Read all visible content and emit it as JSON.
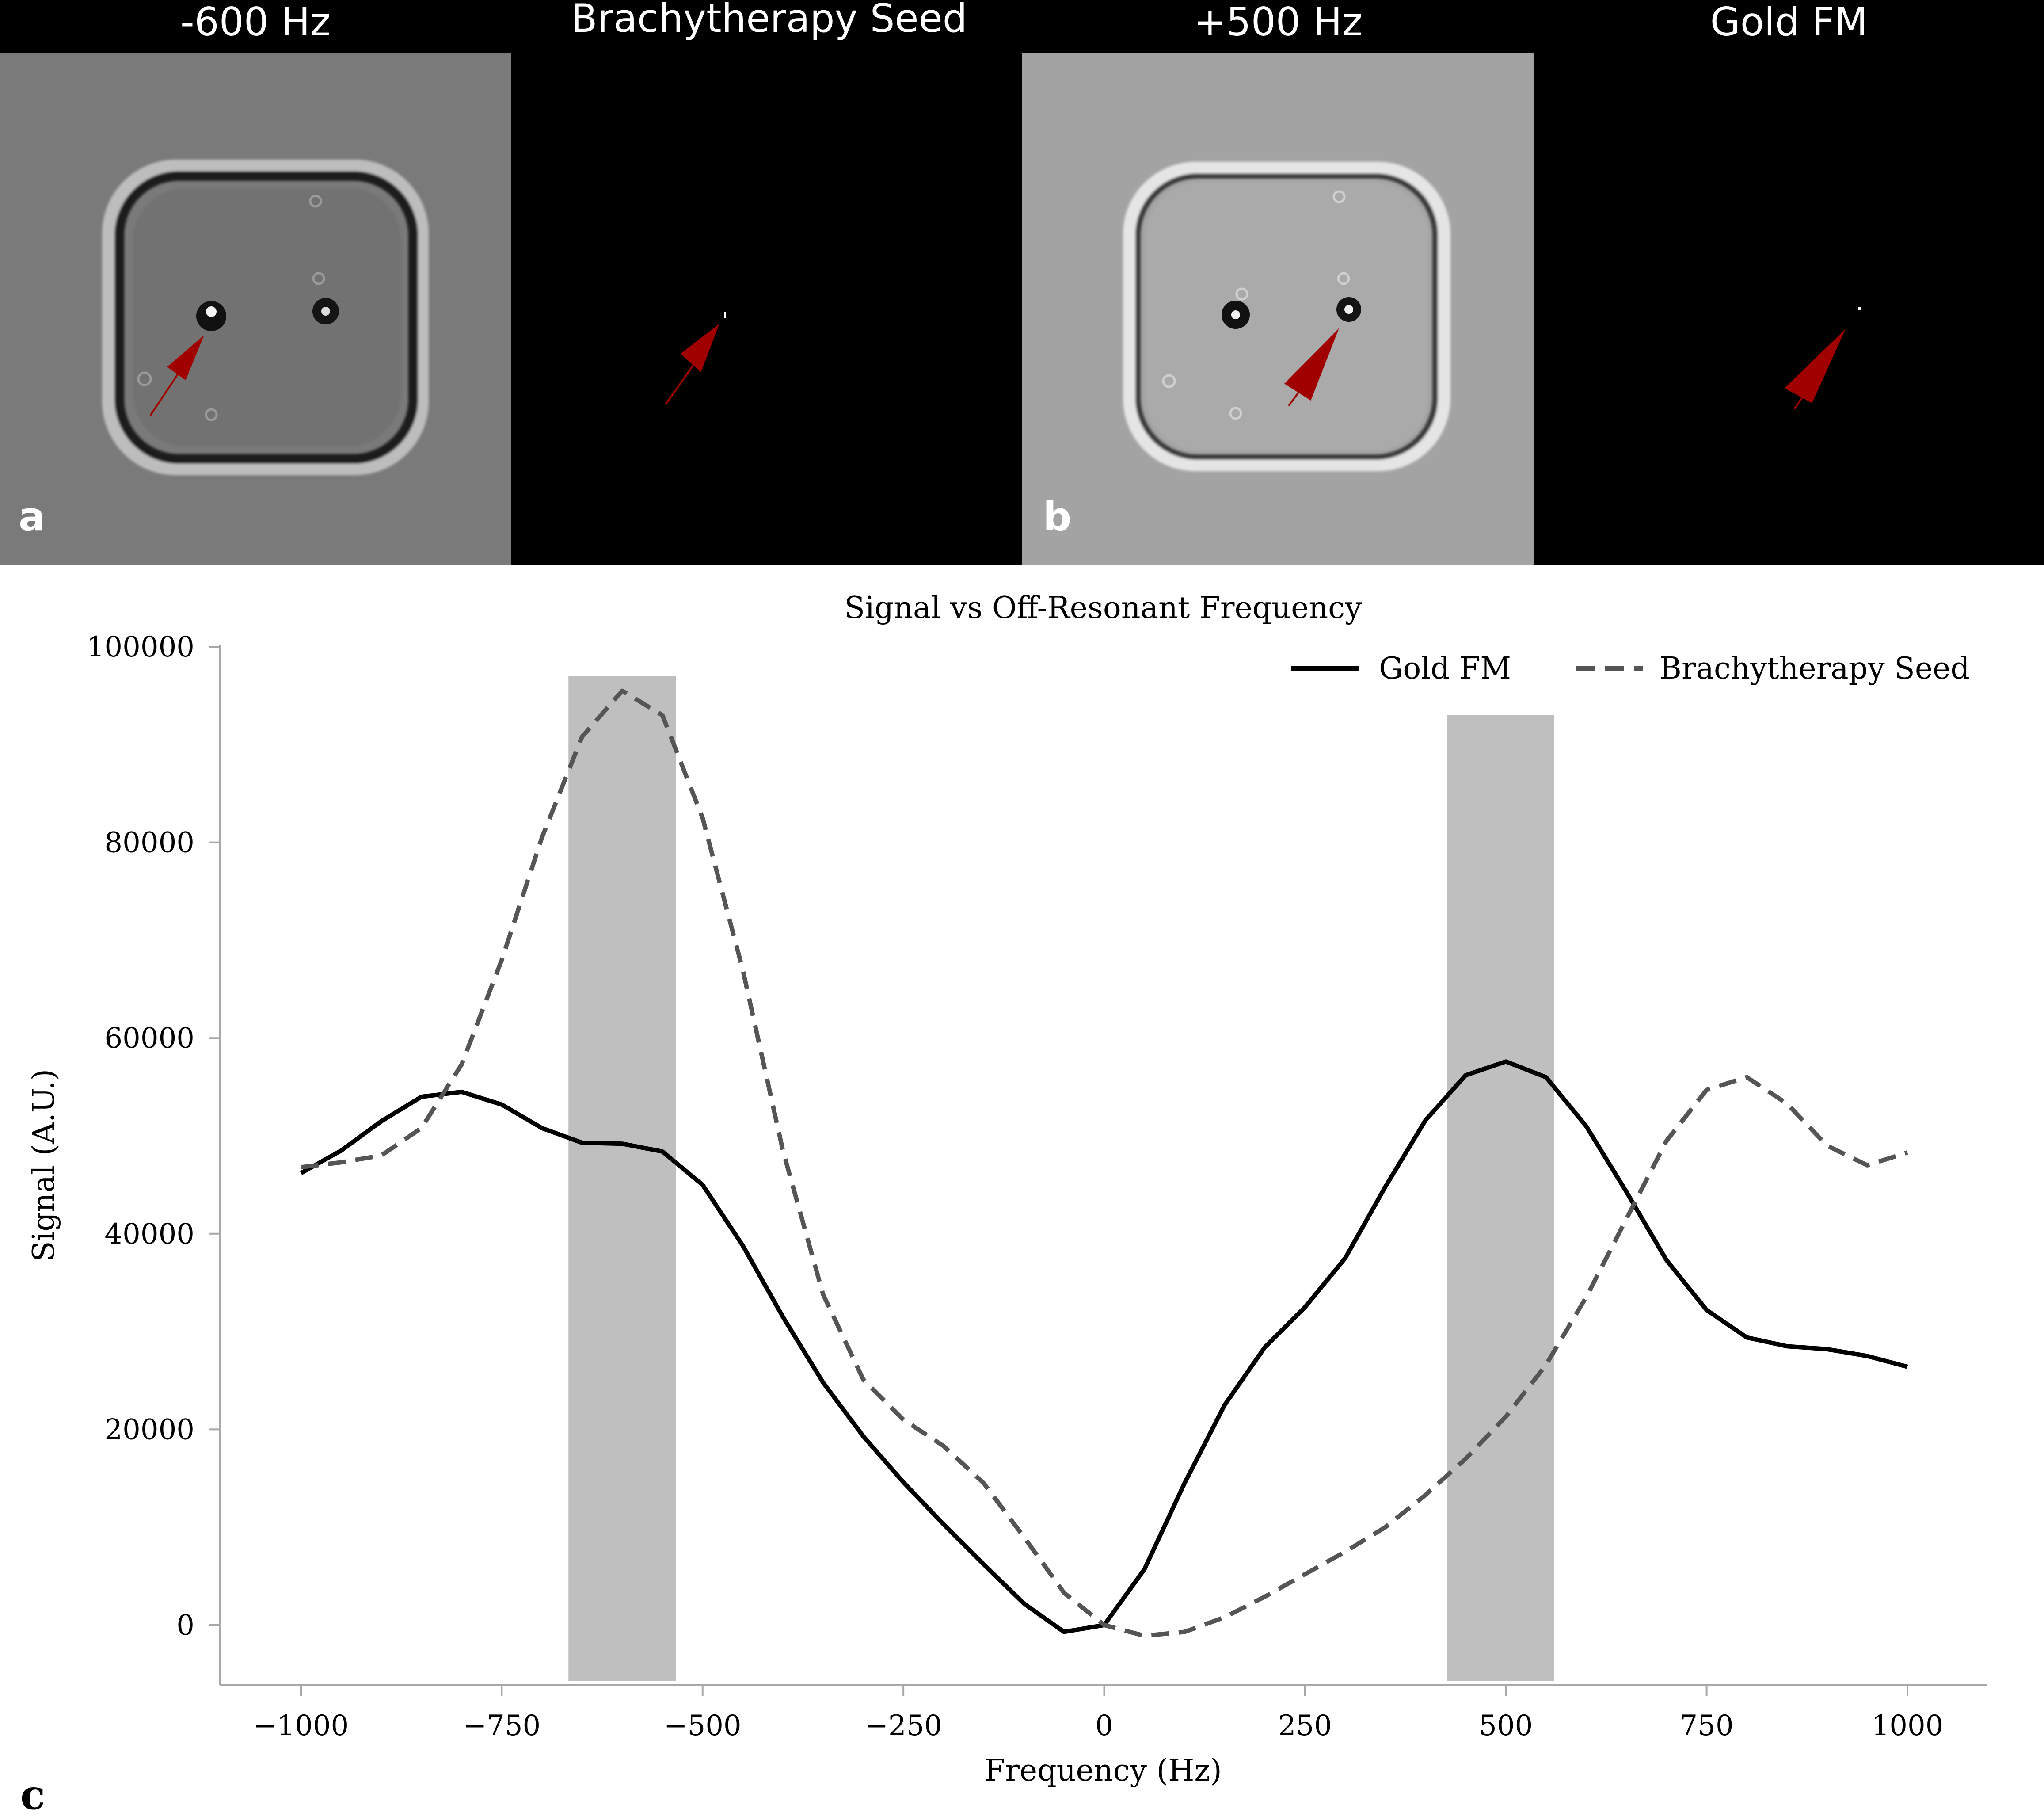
{
  "panels": [
    {
      "title": "-600 Hz",
      "letter": "a",
      "kind": "mri",
      "bg": "#7a7a7a"
    },
    {
      "title": "Brachytherapy Seed",
      "letter": "",
      "kind": "mask",
      "bg": "#000000"
    },
    {
      "title": "+500 Hz",
      "letter": "b",
      "kind": "mri",
      "bg": "#a3a3a3"
    },
    {
      "title": "Gold FM",
      "letter": "",
      "kind": "mask",
      "bg": "#000000"
    }
  ],
  "arrow_color": "#a00000",
  "chart_letter": "c",
  "chart_data": {
    "type": "line",
    "title": "Signal vs Off-Resonant Frequency",
    "xlabel": "Frequency (Hz)",
    "ylabel": "Signal (A.U.)",
    "xlim": [
      -1100,
      1100
    ],
    "ylim": [
      -6000,
      100000
    ],
    "xticks": [
      -1000,
      -750,
      -500,
      -250,
      0,
      250,
      500,
      750,
      1000
    ],
    "xtick_labels": [
      "−1000",
      "−750",
      "−500",
      "−250",
      "0",
      "250",
      "500",
      "750",
      "1000"
    ],
    "yticks": [
      0,
      20000,
      40000,
      60000,
      80000,
      100000
    ],
    "ytick_labels": [
      "0",
      "20000",
      "40000",
      "60000",
      "80000",
      "100000"
    ],
    "legend_position": "top-right",
    "shaded_bands": [
      {
        "x": [
          -667,
          -533
        ],
        "y_top": 97000,
        "color": "#bfbfbf"
      },
      {
        "x": [
          427,
          560
        ],
        "y_top": 93000,
        "color": "#bfbfbf"
      }
    ],
    "x": [
      -1000,
      -950,
      -900,
      -850,
      -800,
      -750,
      -700,
      -650,
      -600,
      -550,
      -500,
      -450,
      -400,
      -350,
      -300,
      -250,
      -200,
      -150,
      -100,
      -50,
      0,
      50,
      100,
      150,
      200,
      250,
      300,
      350,
      400,
      450,
      500,
      550,
      600,
      650,
      700,
      750,
      800,
      850,
      900,
      950,
      1000
    ],
    "series": [
      {
        "name": "Gold FM",
        "style": "solid",
        "color": "#000000",
        "values": [
          46200,
          48500,
          51500,
          54000,
          54500,
          53200,
          50800,
          49300,
          49200,
          48400,
          45000,
          38800,
          31500,
          24800,
          19300,
          14600,
          10300,
          6200,
          2200,
          -700,
          0,
          5700,
          14500,
          22500,
          28400,
          32500,
          37500,
          44800,
          51600,
          56200,
          57600,
          56000,
          51000,
          44300,
          37300,
          32200,
          29400,
          28500,
          28200,
          27500,
          26400
        ]
      },
      {
        "name": "Brachytherapy Seed",
        "style": "dashed",
        "color": "#555555",
        "values": [
          46800,
          47300,
          48000,
          50800,
          57300,
          68000,
          80500,
          90800,
          95500,
          93000,
          82500,
          67000,
          48500,
          33800,
          25100,
          21000,
          18300,
          14500,
          9000,
          3300,
          0,
          -1100,
          -700,
          800,
          2900,
          5200,
          7500,
          10000,
          13300,
          17000,
          21300,
          26600,
          33500,
          41500,
          49500,
          54700,
          56000,
          53300,
          49000,
          47000,
          48300
        ]
      }
    ]
  }
}
